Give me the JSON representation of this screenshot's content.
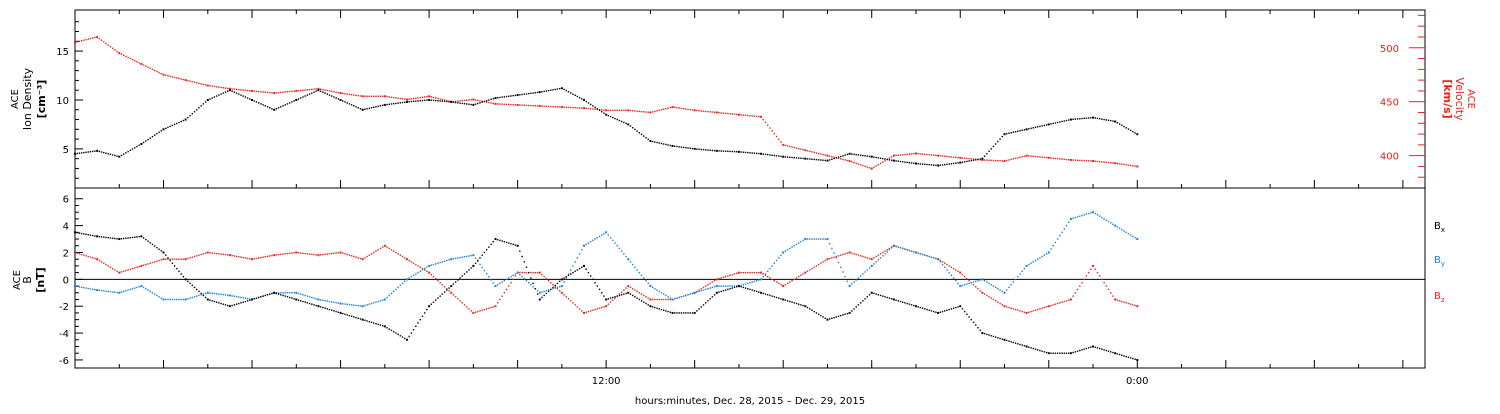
{
  "figure": {
    "xlabel": "hours:minutes, Dec. 28, 2015 – Dec. 29, 2015"
  },
  "colors": {
    "black": "#000000",
    "red": "#e8221a",
    "blue": "#1a7fd4"
  },
  "chart_data": [
    {
      "type": "scatter",
      "panel": "top",
      "ylabel_left": [
        "ACE",
        "Ion Density",
        "[cm⁻³]"
      ],
      "ylabel_right": [
        "ACE",
        "Velocity",
        "[km/s]"
      ],
      "x_range_hours": [
        0,
        30.5
      ],
      "x_ticks": [
        {
          "value": 12,
          "label": "12:00"
        },
        {
          "value": 24,
          "label": "0:00"
        }
      ],
      "ylim_left": [
        1,
        19.2
      ],
      "yticks_left": [
        5,
        10,
        15
      ],
      "ylim_right": [
        370,
        535
      ],
      "yticks_right": [
        400,
        450,
        500
      ],
      "series": [
        {
          "name": "Ion Density",
          "axis": "left",
          "color": "#000000",
          "x": [
            0,
            0.5,
            1,
            1.5,
            2,
            2.5,
            3,
            3.5,
            4,
            4.5,
            5,
            5.5,
            6,
            6.5,
            7,
            7.5,
            8,
            8.5,
            9,
            9.5,
            10,
            10.5,
            11,
            11.5,
            12,
            12.5,
            13,
            13.5,
            14,
            14.5,
            15,
            15.5,
            16,
            16.5,
            17,
            17.5,
            18,
            18.5,
            19,
            19.5,
            20,
            20.5,
            21,
            21.5,
            22,
            22.5,
            23,
            23.5,
            24
          ],
          "y": [
            4.5,
            4.8,
            4.2,
            5.5,
            7,
            8,
            10,
            11,
            10,
            9,
            10,
            11,
            10,
            9,
            9.5,
            9.8,
            10,
            9.8,
            9.5,
            10.2,
            10.5,
            10.8,
            11.2,
            10,
            8.5,
            7.5,
            5.8,
            5.3,
            5,
            4.8,
            4.7,
            4.5,
            4.2,
            4,
            3.8,
            4.5,
            4.2,
            3.8,
            3.5,
            3.3,
            3.6,
            4,
            6.5,
            7,
            7.5,
            8,
            8.2,
            7.8,
            6.5
          ]
        },
        {
          "name": "Velocity",
          "axis": "right",
          "color": "#e8221a",
          "x": [
            0,
            0.5,
            1,
            1.5,
            2,
            2.5,
            3,
            3.5,
            4,
            4.5,
            5,
            5.5,
            6,
            6.5,
            7,
            7.5,
            8,
            8.5,
            9,
            9.5,
            10,
            10.5,
            11,
            11.5,
            12,
            12.5,
            13,
            13.5,
            14,
            14.5,
            15,
            15.5,
            16,
            16.5,
            17,
            17.5,
            18,
            18.5,
            19,
            19.5,
            20,
            20.5,
            21,
            21.5,
            22,
            22.5,
            23,
            23.5,
            24
          ],
          "y": [
            505,
            510,
            495,
            485,
            475,
            470,
            465,
            462,
            460,
            458,
            460,
            462,
            458,
            455,
            455,
            452,
            455,
            450,
            452,
            448,
            447,
            446,
            445,
            444,
            442,
            442,
            440,
            445,
            442,
            440,
            438,
            436,
            410,
            405,
            400,
            395,
            388,
            400,
            402,
            400,
            398,
            396,
            395,
            400,
            398,
            396,
            395,
            393,
            390
          ]
        }
      ]
    },
    {
      "type": "scatter",
      "panel": "bottom",
      "ylabel_left": [
        "ACE",
        "B",
        "[nT]"
      ],
      "x_range_hours": [
        0,
        30.5
      ],
      "ylim": [
        -6.6,
        6.8
      ],
      "yticks": [
        -6,
        -4,
        -2,
        0,
        2,
        4,
        6
      ],
      "zero_line": true,
      "legend_placement": "right",
      "series": [
        {
          "name": "B",
          "subscript": "x",
          "color": "#000000",
          "x": [
            0,
            0.5,
            1,
            1.5,
            2,
            2.5,
            3,
            3.5,
            4,
            4.5,
            5,
            5.5,
            6,
            6.5,
            7,
            7.5,
            8,
            8.5,
            9,
            9.5,
            10,
            10.5,
            11,
            11.5,
            12,
            12.5,
            13,
            13.5,
            14,
            14.5,
            15,
            15.5,
            16,
            16.5,
            17,
            17.5,
            18,
            18.5,
            19,
            19.5,
            20,
            20.5,
            21,
            21.5,
            22,
            22.5,
            23,
            23.5,
            24
          ],
          "y": [
            3.5,
            3.2,
            3,
            3.2,
            2,
            0,
            -1.5,
            -2,
            -1.5,
            -1,
            -1.5,
            -2,
            -2.5,
            -3,
            -3.5,
            -4.5,
            -2,
            -0.5,
            1,
            3,
            2.5,
            -1.5,
            0,
            1,
            -1.5,
            -1,
            -2,
            -2.5,
            -2.5,
            -1,
            -0.5,
            -1,
            -1.5,
            -2,
            -3,
            -2.5,
            -1,
            -1.5,
            -2,
            -2.5,
            -2,
            -4,
            -4.5,
            -5,
            -5.5,
            -5.5,
            -5,
            -5.5,
            -6
          ]
        },
        {
          "name": "B",
          "subscript": "y",
          "color": "#1a7fd4",
          "x": [
            0,
            0.5,
            1,
            1.5,
            2,
            2.5,
            3,
            3.5,
            4,
            4.5,
            5,
            5.5,
            6,
            6.5,
            7,
            7.5,
            8,
            8.5,
            9,
            9.5,
            10,
            10.5,
            11,
            11.5,
            12,
            12.5,
            13,
            13.5,
            14,
            14.5,
            15,
            15.5,
            16,
            16.5,
            17,
            17.5,
            18,
            18.5,
            19,
            19.5,
            20,
            20.5,
            21,
            21.5,
            22,
            22.5,
            23,
            23.5,
            24
          ],
          "y": [
            -0.5,
            -0.8,
            -1,
            -0.5,
            -1.5,
            -1.5,
            -1,
            -1.2,
            -1.5,
            -1,
            -1,
            -1.5,
            -1.8,
            -2,
            -1.5,
            0,
            1,
            1.5,
            1.8,
            -0.5,
            0.5,
            -1,
            -0.5,
            2.5,
            3.5,
            1.5,
            -0.5,
            -1.5,
            -1,
            -0.5,
            -0.5,
            0,
            2,
            3,
            3,
            -0.5,
            1,
            2.5,
            2,
            1.5,
            -0.5,
            0,
            -1,
            1,
            2,
            4.5,
            5,
            4,
            3
          ]
        },
        {
          "name": "B",
          "subscript": "z",
          "color": "#e8221a",
          "x": [
            0,
            0.5,
            1,
            1.5,
            2,
            2.5,
            3,
            3.5,
            4,
            4.5,
            5,
            5.5,
            6,
            6.5,
            7,
            7.5,
            8,
            8.5,
            9,
            9.5,
            10,
            10.5,
            11,
            11.5,
            12,
            12.5,
            13,
            13.5,
            14,
            14.5,
            15,
            15.5,
            16,
            16.5,
            17,
            17.5,
            18,
            18.5,
            19,
            19.5,
            20,
            20.5,
            21,
            21.5,
            22,
            22.5,
            23,
            23.5,
            24
          ],
          "y": [
            2,
            1.5,
            0.5,
            1,
            1.5,
            1.5,
            2,
            1.8,
            1.5,
            1.8,
            2,
            1.8,
            2,
            1.5,
            2.5,
            1.5,
            0.5,
            -1,
            -2.5,
            -2,
            0.5,
            0.5,
            -1,
            -2.5,
            -2,
            -0.5,
            -1.5,
            -1.5,
            -1,
            0,
            0.5,
            0.5,
            -0.5,
            0.5,
            1.5,
            2,
            1.5,
            2.5,
            2,
            1.5,
            0.5,
            -1,
            -2,
            -2.5,
            -2,
            -1.5,
            1,
            -1.5,
            -2
          ]
        }
      ]
    }
  ]
}
